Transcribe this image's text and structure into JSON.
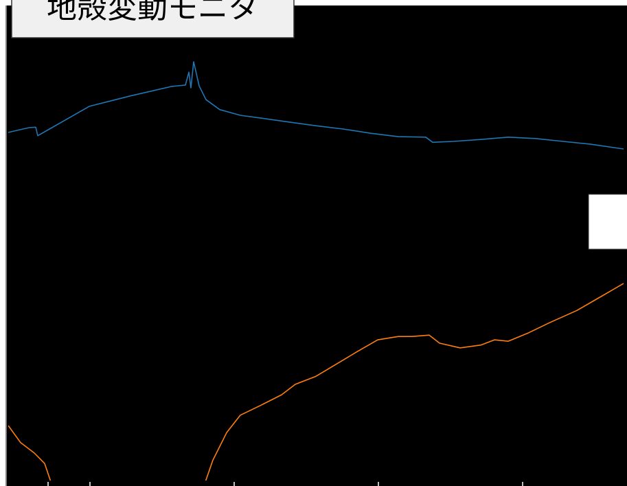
{
  "chart_data": {
    "type": "line",
    "title": "地殻変動モニタ",
    "xlim": [
      0,
      896
    ],
    "ylim": [
      0,
      100
    ],
    "series": [
      {
        "color": "#1f77b4",
        "x": [
          0,
          30,
          40,
          43,
          60,
          88,
          118,
          148,
          178,
          208,
          238,
          258,
          263,
          266,
          270,
          278,
          288,
          308,
          338,
          368,
          408,
          448,
          488,
          528,
          568,
          608,
          618,
          648,
          688,
          728,
          768,
          808,
          848,
          896
        ],
        "values": [
          73.5,
          74.5,
          74.6,
          72.8,
          74.2,
          76.5,
          79.0,
          80.1,
          81.2,
          82.2,
          83.2,
          83.5,
          86.2,
          82.9,
          88.4,
          83.3,
          80.4,
          78.3,
          77.1,
          76.5,
          75.7,
          74.9,
          74.2,
          73.3,
          72.6,
          72.5,
          71.4,
          71.6,
          72.0,
          72.5,
          72.2,
          71.6,
          71.0,
          70.0
        ]
      },
      {
        "color": "#ff7f0e",
        "x": [
          0,
          18,
          38,
          53,
          63,
          175,
          286,
          298,
          318,
          338,
          368,
          398,
          418,
          448,
          478,
          508,
          538,
          568,
          588,
          613,
          628,
          658,
          688,
          708,
          728,
          758,
          788,
          828,
          858,
          896
        ],
        "values": [
          11.6,
          8.0,
          5.8,
          3.6,
          -0.7,
          null,
          -0.7,
          4.3,
          10.1,
          13.8,
          15.9,
          18.1,
          20.3,
          22.0,
          24.6,
          27.2,
          29.7,
          30.4,
          30.4,
          30.7,
          29.0,
          28.0,
          28.6,
          29.7,
          29.4,
          31.2,
          33.3,
          35.9,
          38.4,
          41.6
        ]
      }
    ]
  }
}
